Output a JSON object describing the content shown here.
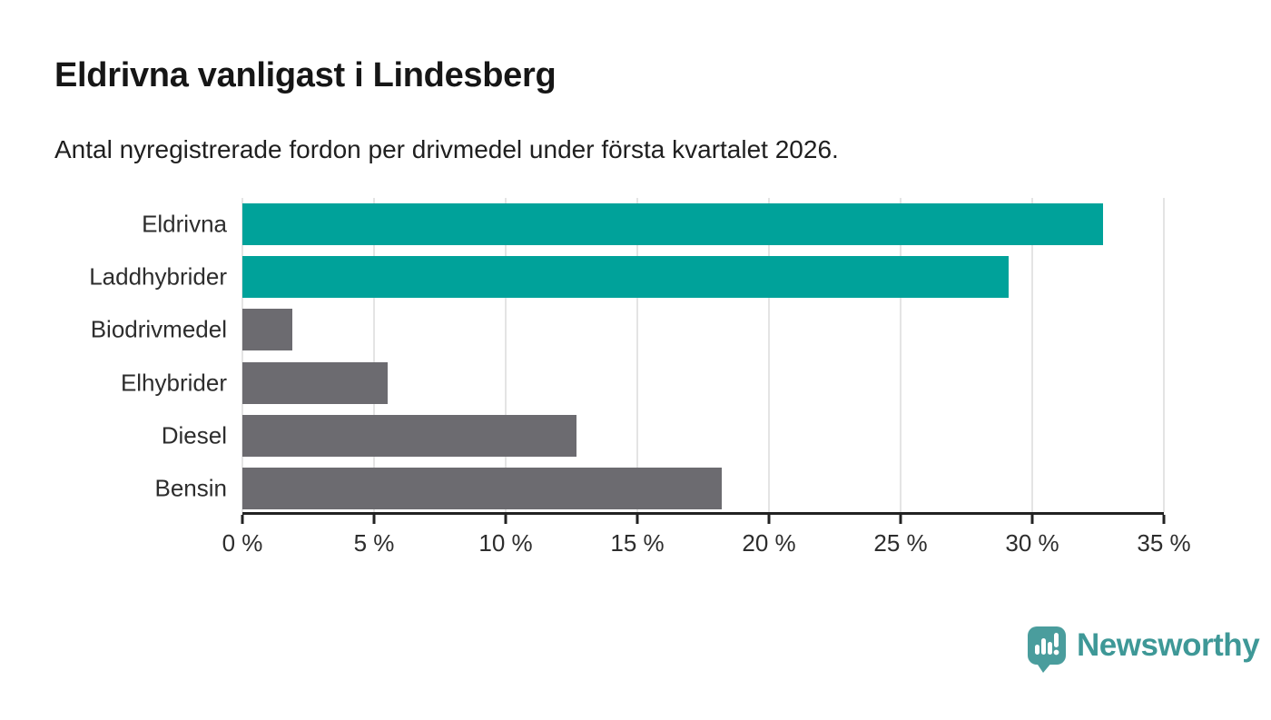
{
  "header": {
    "title": "Eldrivna vanligast i Lindesberg",
    "subtitle": "Antal nyregistrerade fordon per drivmedel under första kvartalet 2026."
  },
  "chart_data": {
    "type": "bar",
    "orientation": "horizontal",
    "title": "Eldrivna vanligast i Lindesberg",
    "subtitle": "Antal nyregistrerade fordon per drivmedel under första kvartalet 2026.",
    "categories": [
      "Eldrivna",
      "Laddhybrider",
      "Biodrivmedel",
      "Elhybrider",
      "Diesel",
      "Bensin"
    ],
    "values": [
      32.7,
      29.1,
      1.9,
      5.5,
      12.7,
      18.2
    ],
    "unit": "%",
    "bar_colors": [
      "#00a29a",
      "#00a29a",
      "#6c6b70",
      "#6c6b70",
      "#6c6b70",
      "#6c6b70"
    ],
    "highlight_color": "#00a29a",
    "default_color": "#6c6b70",
    "xlabel": "",
    "ylabel": "",
    "xlim": [
      0,
      35
    ],
    "x_ticks": [
      0,
      5,
      10,
      15,
      20,
      25,
      30,
      35
    ],
    "x_tick_labels": [
      "0 %",
      "5 %",
      "10 %",
      "15 %",
      "20 %",
      "25 %",
      "30 %",
      "35 %"
    ],
    "grid": true,
    "legend": "none"
  },
  "footer": {
    "brand": "Newsworthy",
    "brand_color": "#3e9897",
    "icon_color": "#4a9d9d"
  }
}
